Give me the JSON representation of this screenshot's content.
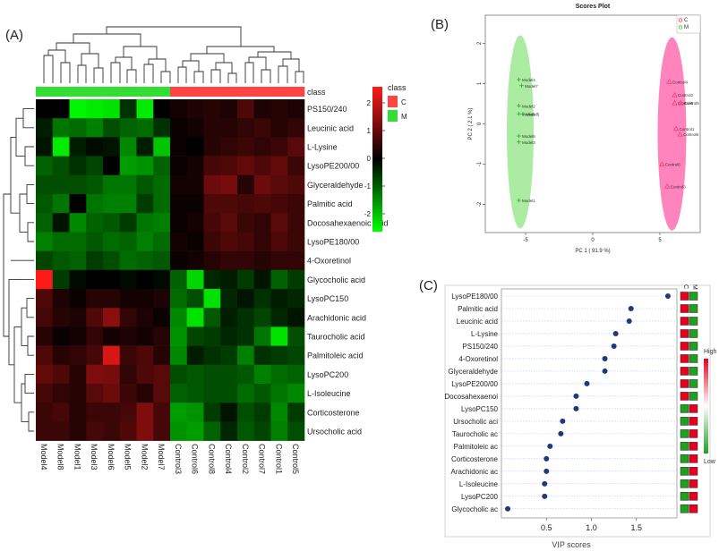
{
  "panel_labels": {
    "a": "(A)",
    "b": "(B)",
    "c": "(C)"
  },
  "chart_data": [
    {
      "type": "heatmap",
      "panel": "(A)",
      "class_label": "class",
      "columns": [
        "Model4",
        "Model8",
        "Model1",
        "Model3",
        "Model6",
        "Model5",
        "Model2",
        "Model7",
        "Control3",
        "Control6",
        "Control8",
        "Control4",
        "Control2",
        "Control7",
        "Control1",
        "Control5"
      ],
      "column_class": [
        "M",
        "M",
        "M",
        "M",
        "M",
        "M",
        "M",
        "M",
        "C",
        "C",
        "C",
        "C",
        "C",
        "C",
        "C",
        "C"
      ],
      "rows": [
        "PS150/240",
        "Leucinic acid",
        "L-Lysine",
        "LysoPE200/00",
        "Glyceraldehyde",
        "Palmitic acid",
        "Docosahexaenoic acid",
        "LysoPE180/00",
        "4-Oxoretinol",
        "Glycocholic acid",
        "LysoPC150",
        "Arachidonic acid",
        "Taurocholic acid",
        "Palmitoleic acid",
        "LysoPC200",
        "L-Isoleucine",
        "Corticosterone",
        "Ursocholic acid"
      ],
      "values": [
        [
          0.0,
          0.0,
          -2.5,
          -2.4,
          -2.3,
          -0.5,
          -2.4,
          0.0,
          0.2,
          0.3,
          0.4,
          0.3,
          0.8,
          0.3,
          0.4,
          0.3
        ],
        [
          -0.3,
          -1.2,
          -1.1,
          -1.3,
          -0.8,
          -1.0,
          -1.1,
          -0.5,
          0.1,
          0.2,
          0.4,
          0.4,
          0.5,
          0.6,
          0.4,
          0.5
        ],
        [
          -0.2,
          -2.4,
          -0.3,
          -0.1,
          -0.2,
          -1.4,
          -0.3,
          -2.0,
          0.1,
          0.0,
          0.4,
          0.5,
          0.6,
          0.5,
          0.6,
          0.9
        ],
        [
          -1.0,
          -0.8,
          -0.5,
          -0.7,
          0.0,
          -1.6,
          -1.5,
          -1.0,
          0.1,
          0.2,
          0.7,
          0.8,
          1.0,
          0.8,
          1.0,
          0.6
        ],
        [
          -0.8,
          -0.8,
          -0.8,
          -0.9,
          -1.2,
          -1.2,
          -0.9,
          -1.1,
          0.2,
          0.2,
          1.1,
          1.2,
          0.4,
          1.1,
          0.9,
          0.8
        ],
        [
          -0.9,
          -1.2,
          0.0,
          -1.2,
          -1.3,
          -1.3,
          -0.6,
          -1.1,
          0.1,
          0.1,
          0.8,
          0.8,
          0.7,
          0.8,
          0.7,
          0.6
        ],
        [
          -1.0,
          -0.2,
          -1.4,
          -1.0,
          -0.9,
          -0.6,
          -1.2,
          -1.3,
          0.1,
          0.2,
          0.7,
          0.9,
          0.6,
          0.5,
          0.9,
          0.6
        ],
        [
          -1.3,
          -1.1,
          -1.1,
          -0.9,
          -1.1,
          -1.0,
          -1.3,
          -1.1,
          0.2,
          0.1,
          0.6,
          0.8,
          0.7,
          0.5,
          0.8,
          0.6
        ],
        [
          -0.7,
          -0.9,
          -1.0,
          -0.6,
          -0.8,
          -1.1,
          -1.0,
          -0.9,
          0.1,
          0.2,
          0.4,
          0.5,
          0.5,
          0.4,
          0.5,
          0.5
        ],
        [
          2.6,
          -0.6,
          -0.1,
          0.0,
          0.0,
          -0.1,
          0.0,
          -0.1,
          -1.0,
          -2.2,
          -0.4,
          -0.3,
          -0.6,
          -0.2,
          -1.0,
          -0.6
        ],
        [
          0.8,
          0.3,
          0.1,
          0.4,
          0.4,
          0.2,
          0.2,
          0.3,
          -1.1,
          -0.8,
          -2.3,
          -0.4,
          -0.2,
          -0.5,
          -0.3,
          -0.4
        ],
        [
          0.7,
          0.4,
          0.3,
          0.8,
          1.4,
          0.5,
          0.3,
          0.1,
          -1.4,
          -2.3,
          -0.9,
          -0.3,
          -0.5,
          -0.7,
          -0.4,
          -0.2
        ],
        [
          0.4,
          0.1,
          0.2,
          0.5,
          0.2,
          0.3,
          0.2,
          0.4,
          -1.5,
          -0.7,
          -0.6,
          -0.4,
          -0.5,
          -1.2,
          -2.3,
          -0.8
        ],
        [
          0.8,
          0.4,
          0.5,
          0.7,
          2.2,
          0.6,
          0.8,
          0.4,
          -1.4,
          -0.3,
          -0.5,
          -0.6,
          -1.3,
          -0.5,
          -0.6,
          -0.7
        ],
        [
          1.0,
          0.8,
          0.4,
          1.3,
          1.2,
          0.5,
          0.8,
          0.9,
          -0.8,
          -0.9,
          -0.8,
          -0.8,
          -0.9,
          -1.3,
          -1.1,
          -1.0
        ],
        [
          0.7,
          0.5,
          0.4,
          0.9,
          1.1,
          0.6,
          0.4,
          0.9,
          -1.0,
          -0.9,
          -0.8,
          -0.8,
          -1.1,
          -0.9,
          -1.2,
          -1.4
        ],
        [
          0.6,
          0.7,
          0.4,
          0.6,
          0.6,
          0.7,
          1.3,
          0.7,
          -1.6,
          -1.5,
          -0.6,
          -0.2,
          -0.8,
          -0.6,
          -1.4,
          -0.6
        ],
        [
          0.6,
          0.6,
          0.4,
          0.7,
          0.6,
          0.8,
          1.3,
          0.7,
          -1.5,
          -1.6,
          -1.0,
          -0.4,
          -0.9,
          -0.7,
          -1.3,
          -0.8
        ]
      ],
      "color_key": {
        "title": "class",
        "ticks": [
          "2",
          "1",
          "0",
          "-1",
          "-2"
        ],
        "classes": [
          "C",
          "M"
        ]
      },
      "colors": {
        "high": "#ff1a1a",
        "mid": "#000000",
        "low": "#00ff00",
        "class_C": "#ff4444",
        "class_M": "#33dd33"
      }
    },
    {
      "type": "scatter",
      "panel": "(B)",
      "title": "Scores Plot",
      "xlabel": "PC 1 ( 91.9 %)",
      "ylabel": "PC 2 ( 2.1 %)",
      "xlim": [
        -8,
        8
      ],
      "ylim": [
        -2.7,
        2.7
      ],
      "x_ticks": [
        "-5",
        "0",
        "5"
      ],
      "y_ticks": [
        "2",
        "1",
        "0",
        "-1",
        "-2"
      ],
      "legend": [
        {
          "name": "C",
          "color": "#ff3366"
        },
        {
          "name": "M",
          "color": "#33cc33"
        }
      ],
      "series": [
        {
          "name": "C",
          "points": [
            {
              "label": "Control4",
              "x": 5.7,
              "y": 1.05
            },
            {
              "label": "Control2",
              "x": 6.1,
              "y": 0.72
            },
            {
              "label": "Control6",
              "x": 6.1,
              "y": 0.52
            },
            {
              "label": "Control5",
              "x": 6.55,
              "y": 0.52
            },
            {
              "label": "Control1",
              "x": 6.2,
              "y": -0.12
            },
            {
              "label": "Control8",
              "x": 6.5,
              "y": -0.26
            },
            {
              "label": "Control6",
              "x": 5.15,
              "y": -1.0
            },
            {
              "label": "Control3",
              "x": 5.55,
              "y": -1.55
            }
          ]
        },
        {
          "name": "M",
          "points": [
            {
              "label": "Model4",
              "x": -5.5,
              "y": 1.1
            },
            {
              "label": "Model7",
              "x": -5.3,
              "y": 0.95
            },
            {
              "label": "Model2",
              "x": -5.5,
              "y": 0.45
            },
            {
              "label": "Model8",
              "x": -5.5,
              "y": 0.25
            },
            {
              "label": "Model5",
              "x": -5.2,
              "y": 0.25
            },
            {
              "label": "Model6",
              "x": -5.5,
              "y": -0.3
            },
            {
              "label": "Model3",
              "x": -5.5,
              "y": -0.45
            },
            {
              "label": "Model1",
              "x": -5.5,
              "y": -1.9
            }
          ]
        }
      ]
    },
    {
      "type": "scatter",
      "panel": "(C)",
      "xlabel": "VIP scores",
      "x_ticks": [
        "0.5",
        "1.0",
        "1.5"
      ],
      "xlim": [
        0.0,
        1.95
      ],
      "col_header": [
        "C",
        "M"
      ],
      "legend": {
        "high": "High",
        "low": "Low"
      },
      "features": [
        "LysoPE180/00",
        "Palmitic acid",
        "Leucinic acid",
        "L-Lysine",
        "PS150/240",
        "4-Oxoretinol",
        "Glyceraldehyde",
        "LysoPE200/00",
        "Docosahexaenoi",
        "LysoPC150",
        "Ursocholic aci",
        "Taurocholic ac",
        "Palmitoleic ac",
        "Corticosterone",
        "Arachidonic ac",
        "L-Isoleucine",
        "LysoPC200",
        "Glycocholic ac"
      ],
      "values": [
        1.85,
        1.44,
        1.42,
        1.27,
        1.25,
        1.15,
        1.15,
        0.95,
        0.83,
        0.83,
        0.68,
        0.66,
        0.54,
        0.5,
        0.5,
        0.48,
        0.48,
        0.07
      ],
      "classes_high": [
        "C",
        "C",
        "C",
        "C",
        "C",
        "C",
        "C",
        "C",
        "C",
        "M",
        "M",
        "M",
        "M",
        "M",
        "M",
        "M",
        "M",
        "M"
      ],
      "colors": {
        "dot": "#1f3a7a",
        "high": "#e8001c",
        "low": "#1fa01f"
      }
    }
  ]
}
